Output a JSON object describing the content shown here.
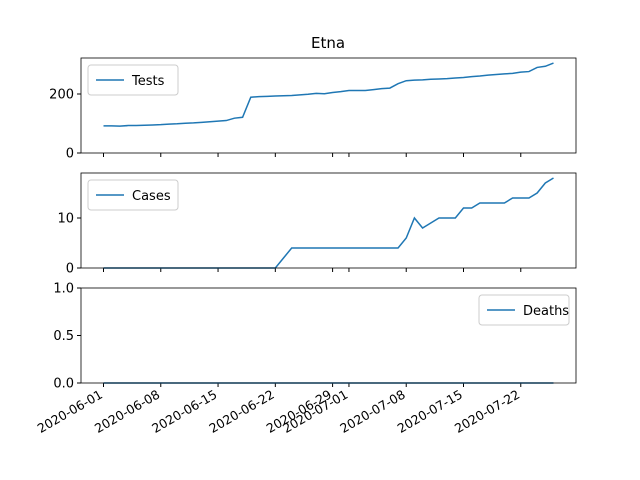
{
  "chart_data": [
    {
      "type": "line",
      "title": "Etna",
      "x": [
        "2020-06-01",
        "2020-06-02",
        "2020-06-03",
        "2020-06-04",
        "2020-06-05",
        "2020-06-06",
        "2020-06-07",
        "2020-06-08",
        "2020-06-09",
        "2020-06-10",
        "2020-06-11",
        "2020-06-12",
        "2020-06-13",
        "2020-06-14",
        "2020-06-15",
        "2020-06-16",
        "2020-06-17",
        "2020-06-18",
        "2020-06-19",
        "2020-06-20",
        "2020-06-21",
        "2020-06-22",
        "2020-06-23",
        "2020-06-24",
        "2020-06-25",
        "2020-06-26",
        "2020-06-27",
        "2020-06-28",
        "2020-06-29",
        "2020-06-30",
        "2020-07-01",
        "2020-07-02",
        "2020-07-03",
        "2020-07-04",
        "2020-07-05",
        "2020-07-06",
        "2020-07-07",
        "2020-07-08",
        "2020-07-09",
        "2020-07-10",
        "2020-07-11",
        "2020-07-12",
        "2020-07-13",
        "2020-07-14",
        "2020-07-15",
        "2020-07-16",
        "2020-07-17",
        "2020-07-18",
        "2020-07-19",
        "2020-07-20",
        "2020-07-21",
        "2020-07-22",
        "2020-07-23",
        "2020-07-24",
        "2020-07-25",
        "2020-07-26"
      ],
      "series": [
        {
          "name": "Tests",
          "color": "#1f77b4",
          "values": [
            92,
            92,
            91,
            93,
            93,
            94,
            95,
            96,
            98,
            99,
            101,
            102,
            104,
            106,
            108,
            110,
            118,
            121,
            189,
            191,
            192,
            193,
            194,
            195,
            197,
            199,
            202,
            201,
            205,
            208,
            212,
            212,
            212,
            215,
            218,
            220,
            235,
            245,
            247,
            248,
            250,
            251,
            252,
            254,
            256,
            259,
            261,
            264,
            266,
            268,
            270,
            274,
            276,
            290,
            294,
            305
          ]
        }
      ],
      "ylim": [
        0,
        322
      ],
      "yticks": [
        0,
        200
      ],
      "legend": "upper left"
    },
    {
      "type": "line",
      "x": [
        "2020-06-01",
        "2020-06-02",
        "2020-06-03",
        "2020-06-04",
        "2020-06-05",
        "2020-06-06",
        "2020-06-07",
        "2020-06-08",
        "2020-06-09",
        "2020-06-10",
        "2020-06-11",
        "2020-06-12",
        "2020-06-13",
        "2020-06-14",
        "2020-06-15",
        "2020-06-16",
        "2020-06-17",
        "2020-06-18",
        "2020-06-19",
        "2020-06-20",
        "2020-06-21",
        "2020-06-22",
        "2020-06-23",
        "2020-06-24",
        "2020-06-25",
        "2020-06-26",
        "2020-06-27",
        "2020-06-28",
        "2020-06-29",
        "2020-06-30",
        "2020-07-01",
        "2020-07-02",
        "2020-07-03",
        "2020-07-04",
        "2020-07-05",
        "2020-07-06",
        "2020-07-07",
        "2020-07-08",
        "2020-07-09",
        "2020-07-10",
        "2020-07-11",
        "2020-07-12",
        "2020-07-13",
        "2020-07-14",
        "2020-07-15",
        "2020-07-16",
        "2020-07-17",
        "2020-07-18",
        "2020-07-19",
        "2020-07-20",
        "2020-07-21",
        "2020-07-22",
        "2020-07-23",
        "2020-07-24",
        "2020-07-25",
        "2020-07-26"
      ],
      "series": [
        {
          "name": "Cases",
          "color": "#1f77b4",
          "values": [
            0,
            0,
            0,
            0,
            0,
            0,
            0,
            0,
            0,
            0,
            0,
            0,
            0,
            0,
            0,
            0,
            0,
            0,
            0,
            0,
            0,
            0,
            2,
            4,
            4,
            4,
            4,
            4,
            4,
            4,
            4,
            4,
            4,
            4,
            4,
            4,
            4,
            6,
            10,
            8,
            9,
            10,
            10,
            10,
            12,
            12,
            13,
            13,
            13,
            13,
            14,
            14,
            14,
            15,
            17,
            18
          ]
        }
      ],
      "ylim": [
        0,
        19
      ],
      "yticks": [
        0,
        10
      ],
      "legend": "upper left"
    },
    {
      "type": "line",
      "x": [
        "2020-06-01",
        "2020-06-02",
        "2020-06-03",
        "2020-06-04",
        "2020-06-05",
        "2020-06-06",
        "2020-06-07",
        "2020-06-08",
        "2020-06-09",
        "2020-06-10",
        "2020-06-11",
        "2020-06-12",
        "2020-06-13",
        "2020-06-14",
        "2020-06-15",
        "2020-06-16",
        "2020-06-17",
        "2020-06-18",
        "2020-06-19",
        "2020-06-20",
        "2020-06-21",
        "2020-06-22",
        "2020-06-23",
        "2020-06-24",
        "2020-06-25",
        "2020-06-26",
        "2020-06-27",
        "2020-06-28",
        "2020-06-29",
        "2020-06-30",
        "2020-07-01",
        "2020-07-02",
        "2020-07-03",
        "2020-07-04",
        "2020-07-05",
        "2020-07-06",
        "2020-07-07",
        "2020-07-08",
        "2020-07-09",
        "2020-07-10",
        "2020-07-11",
        "2020-07-12",
        "2020-07-13",
        "2020-07-14",
        "2020-07-15",
        "2020-07-16",
        "2020-07-17",
        "2020-07-18",
        "2020-07-19",
        "2020-07-20",
        "2020-07-21",
        "2020-07-22",
        "2020-07-23",
        "2020-07-24",
        "2020-07-25",
        "2020-07-26"
      ],
      "series": [
        {
          "name": "Deaths",
          "color": "#1f77b4",
          "values": [
            0,
            0,
            0,
            0,
            0,
            0,
            0,
            0,
            0,
            0,
            0,
            0,
            0,
            0,
            0,
            0,
            0,
            0,
            0,
            0,
            0,
            0,
            0,
            0,
            0,
            0,
            0,
            0,
            0,
            0,
            0,
            0,
            0,
            0,
            0,
            0,
            0,
            0,
            0,
            0,
            0,
            0,
            0,
            0,
            0,
            0,
            0,
            0,
            0,
            0,
            0,
            0,
            0,
            0,
            0,
            0
          ]
        }
      ],
      "ylim": [
        0,
        1
      ],
      "yticks": [
        {
          "value": 0,
          "label": "0.0"
        },
        {
          "value": 0.5,
          "label": "0.5"
        },
        {
          "value": 1,
          "label": "1.0"
        }
      ],
      "legend": "upper right",
      "xlim": [
        "2020-05-29T06:00",
        "2020-07-28T18:00"
      ],
      "xticks": [
        "2020-06-01",
        "2020-06-08",
        "2020-06-15",
        "2020-06-22",
        "2020-06-29",
        "2020-07-01",
        "2020-07-08",
        "2020-07-15",
        "2020-07-22"
      ]
    }
  ]
}
